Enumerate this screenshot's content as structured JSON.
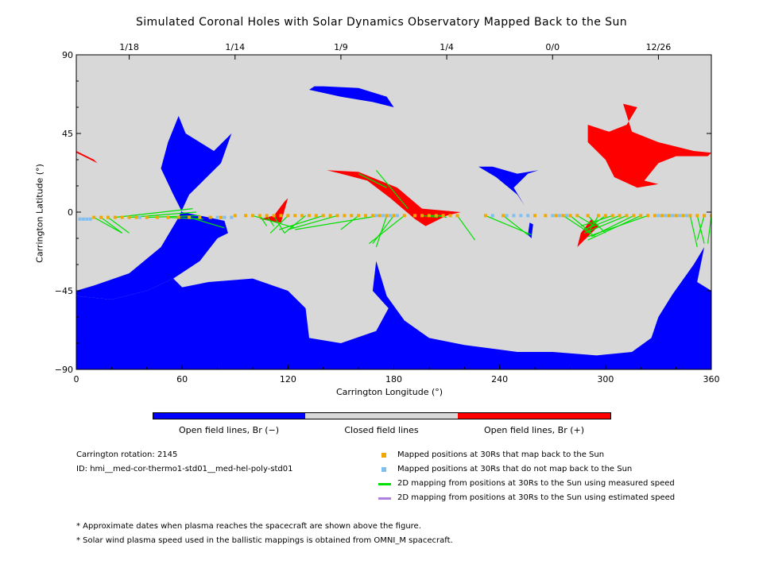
{
  "chart_data": {
    "type": "map",
    "title": "Simulated Coronal Holes with Solar Dynamics Observatory Mapped Back to the Sun",
    "xlabel": "Carrington Longitude (°)",
    "ylabel": "Carrington Latitude (°)",
    "xlim": [
      0,
      360
    ],
    "ylim": [
      -90,
      90
    ],
    "x_ticks": [
      "0",
      "60",
      "120",
      "180",
      "240",
      "300",
      "360"
    ],
    "y_ticks": [
      "90",
      "45",
      "0",
      "-45",
      "-90"
    ],
    "top_axis_dates": [
      "1/18",
      "1/14",
      "1/9",
      "1/4",
      "0/0",
      "12/26"
    ],
    "top_axis_positions_lon": [
      30,
      90,
      150,
      210,
      270,
      330
    ],
    "colors": {
      "background": "#d8d8d8",
      "open_negative": "#0000ff",
      "open_positive": "#ff0000",
      "closed": "#d8d8d8",
      "mapped_back": "#f0a800",
      "not_mapped": "#80c0f0",
      "measured_speed": "#00e000",
      "estimated_speed": "#b080e0"
    },
    "regions": {
      "negative": [
        [
          [
            0,
            -48
          ],
          [
            20,
            -50
          ],
          [
            40,
            -45
          ],
          [
            55,
            -38
          ],
          [
            70,
            -28
          ],
          [
            80,
            -15
          ],
          [
            86,
            -12
          ],
          [
            84,
            -5
          ],
          [
            75,
            -3
          ],
          [
            60,
            0
          ],
          [
            55,
            10
          ],
          [
            48,
            25
          ],
          [
            52,
            40
          ],
          [
            58,
            55
          ],
          [
            62,
            45
          ],
          [
            78,
            35
          ],
          [
            88,
            45
          ],
          [
            82,
            28
          ],
          [
            72,
            18
          ],
          [
            64,
            10
          ],
          [
            58,
            -3
          ],
          [
            48,
            -20
          ],
          [
            30,
            -35
          ],
          [
            10,
            -42
          ],
          [
            0,
            -45
          ]
        ],
        [
          [
            0,
            -90
          ],
          [
            0,
            -48
          ],
          [
            20,
            -50
          ],
          [
            40,
            -45
          ],
          [
            55,
            -38
          ],
          [
            60,
            -43
          ],
          [
            75,
            -40
          ],
          [
            100,
            -38
          ],
          [
            120,
            -45
          ],
          [
            130,
            -55
          ],
          [
            132,
            -72
          ],
          [
            150,
            -75
          ],
          [
            170,
            -68
          ],
          [
            177,
            -55
          ],
          [
            168,
            -45
          ],
          [
            170,
            -28
          ],
          [
            176,
            -48
          ],
          [
            186,
            -62
          ],
          [
            200,
            -72
          ],
          [
            220,
            -76
          ],
          [
            250,
            -80
          ],
          [
            270,
            -80
          ],
          [
            295,
            -82
          ],
          [
            315,
            -80
          ],
          [
            326,
            -72
          ],
          [
            330,
            -60
          ],
          [
            338,
            -47
          ],
          [
            350,
            -30
          ],
          [
            356,
            -20
          ],
          [
            352,
            -40
          ],
          [
            360,
            -45
          ],
          [
            360,
            -90
          ]
        ],
        [
          [
            132,
            70
          ],
          [
            150,
            66
          ],
          [
            168,
            63
          ],
          [
            180,
            60
          ],
          [
            176,
            66
          ],
          [
            160,
            71
          ],
          [
            140,
            72
          ],
          [
            135,
            72
          ]
        ],
        [
          [
            228,
            26
          ],
          [
            238,
            20
          ],
          [
            250,
            10
          ],
          [
            254,
            4
          ],
          [
            248,
            14
          ],
          [
            256,
            22
          ],
          [
            262,
            24
          ],
          [
            250,
            22
          ],
          [
            236,
            26
          ]
        ],
        [
          [
            256,
            -13
          ],
          [
            258,
            -15
          ],
          [
            259,
            -7
          ],
          [
            257,
            -6
          ]
        ]
      ],
      "positive": [
        [
          [
            290,
            50
          ],
          [
            302,
            46
          ],
          [
            312,
            50
          ],
          [
            318,
            60
          ],
          [
            310,
            62
          ],
          [
            315,
            46
          ],
          [
            330,
            40
          ],
          [
            350,
            35
          ],
          [
            360,
            34
          ],
          [
            358,
            32
          ],
          [
            340,
            32
          ],
          [
            330,
            28
          ],
          [
            322,
            18
          ],
          [
            330,
            16
          ],
          [
            318,
            14
          ],
          [
            305,
            20
          ],
          [
            300,
            30
          ],
          [
            290,
            40
          ]
        ],
        [
          [
            0,
            35
          ],
          [
            10,
            30
          ],
          [
            12,
            28
          ],
          [
            2,
            33
          ],
          [
            0,
            34
          ]
        ],
        [
          [
            142,
            24
          ],
          [
            160,
            23
          ],
          [
            182,
            14
          ],
          [
            196,
            2
          ],
          [
            218,
            0
          ],
          [
            210,
            -2
          ],
          [
            198,
            -8
          ],
          [
            192,
            -4
          ],
          [
            178,
            8
          ],
          [
            165,
            18
          ],
          [
            150,
            22
          ]
        ],
        [
          [
            104,
            -4
          ],
          [
            116,
            -6
          ],
          [
            120,
            -14
          ],
          [
            116,
            -6
          ],
          [
            120,
            8
          ],
          [
            118,
            6
          ],
          [
            112,
            -2
          ]
        ],
        [
          [
            284,
            -20
          ],
          [
            288,
            -16
          ],
          [
            296,
            -8
          ],
          [
            292,
            -4
          ],
          [
            286,
            -12
          ]
        ]
      ]
    },
    "mapped_back_points": {
      "lon": [
        10,
        14,
        18,
        22,
        26,
        30,
        34,
        40,
        46,
        52,
        58,
        64,
        70,
        76,
        82,
        90,
        96,
        100,
        104,
        108,
        112,
        116,
        120,
        124,
        128,
        132,
        136,
        140,
        144,
        148,
        152,
        156,
        160,
        164,
        168,
        172,
        176,
        180,
        186,
        192,
        196,
        200,
        204,
        208,
        212,
        216,
        232,
        242,
        260,
        266,
        272,
        276,
        280,
        284,
        290,
        296,
        300,
        304,
        308,
        312,
        316,
        320,
        324,
        328,
        332,
        336,
        340,
        344,
        348,
        352,
        356,
        360
      ],
      "lat": [
        -3,
        -3,
        -3,
        -3,
        -3,
        -3,
        -3,
        -3,
        -3,
        -3,
        -3,
        -3,
        -3,
        -3,
        -3,
        -2,
        -2,
        -2,
        -2,
        -2,
        -2,
        -2,
        -2,
        -2,
        -2,
        -2,
        -2,
        -2,
        -2,
        -2,
        -2,
        -2,
        -2,
        -2,
        -2,
        -2,
        -2,
        -2,
        -2,
        -2,
        -2,
        -2,
        -2,
        -2,
        -2,
        -2,
        -2,
        -2,
        -2,
        -2,
        -2,
        -2,
        -2,
        -2,
        -2,
        -2,
        -2,
        -2,
        -2,
        -2,
        -2,
        -2,
        -2,
        -2,
        -2,
        -2,
        -2,
        -2,
        -2,
        -2,
        -2,
        -2
      ]
    },
    "not_mapped_points": {
      "lon": [
        2,
        4,
        6,
        8,
        36,
        80,
        84,
        88,
        170,
        174,
        178,
        182,
        236,
        244,
        248,
        252,
        256,
        270,
        274,
        278,
        330,
        332,
        334,
        336,
        338,
        340,
        342,
        344,
        346
      ],
      "lat": [
        -4,
        -4,
        -4,
        -4,
        -3,
        -3,
        -3,
        -3,
        -2,
        -2,
        -2,
        -2,
        -2,
        -2,
        -2,
        -2,
        -2,
        -2,
        -2,
        -2,
        -2,
        -2,
        -2,
        -2,
        -2,
        -2,
        -2,
        -2,
        -2
      ]
    },
    "measured_speed_lines": [
      [
        [
          10,
          -3
        ],
        [
          26,
          -12
        ]
      ],
      [
        [
          14,
          -3
        ],
        [
          26,
          -12
        ]
      ],
      [
        [
          18,
          -3
        ],
        [
          30,
          -12
        ]
      ],
      [
        [
          22,
          -3
        ],
        [
          66,
          2
        ]
      ],
      [
        [
          30,
          -3
        ],
        [
          68,
          0
        ]
      ],
      [
        [
          40,
          -3
        ],
        [
          70,
          -2
        ]
      ],
      [
        [
          52,
          -3
        ],
        [
          72,
          -4
        ]
      ],
      [
        [
          64,
          -3
        ],
        [
          84,
          -9
        ]
      ],
      [
        [
          100,
          -2
        ],
        [
          124,
          -9
        ]
      ],
      [
        [
          104,
          -2
        ],
        [
          108,
          -8
        ]
      ],
      [
        [
          108,
          -2
        ],
        [
          112,
          -8
        ]
      ],
      [
        [
          112,
          -2
        ],
        [
          118,
          -12
        ]
      ],
      [
        [
          120,
          -2
        ],
        [
          110,
          -12
        ]
      ],
      [
        [
          130,
          -2
        ],
        [
          118,
          -12
        ]
      ],
      [
        [
          140,
          -2
        ],
        [
          115,
          -10
        ]
      ],
      [
        [
          148,
          -2
        ],
        [
          120,
          -10
        ]
      ],
      [
        [
          160,
          -2
        ],
        [
          150,
          -10
        ]
      ],
      [
        [
          172,
          -2
        ],
        [
          124,
          -10
        ]
      ],
      [
        [
          186,
          -2
        ],
        [
          166,
          -18
        ]
      ],
      [
        [
          180,
          -2
        ],
        [
          168,
          -18
        ]
      ],
      [
        [
          176,
          -2
        ],
        [
          170,
          -20
        ]
      ],
      [
        [
          196,
          -2
        ],
        [
          205,
          -3
        ]
      ],
      [
        [
          200,
          -2
        ],
        [
          208,
          -2
        ]
      ],
      [
        [
          204,
          -2
        ],
        [
          210,
          -3
        ]
      ],
      [
        [
          216,
          -2
        ],
        [
          226,
          -16
        ]
      ],
      [
        [
          176,
          14
        ],
        [
          160,
          22
        ]
      ],
      [
        [
          188,
          2
        ],
        [
          170,
          24
        ]
      ],
      [
        [
          232,
          -2
        ],
        [
          258,
          -13
        ]
      ],
      [
        [
          242,
          -2
        ],
        [
          256,
          -13
        ]
      ],
      [
        [
          276,
          -2
        ],
        [
          294,
          -14
        ]
      ],
      [
        [
          280,
          -2
        ],
        [
          292,
          -12
        ]
      ],
      [
        [
          284,
          -2
        ],
        [
          294,
          -8
        ]
      ],
      [
        [
          290,
          -2
        ],
        [
          300,
          -12
        ]
      ],
      [
        [
          296,
          -2
        ],
        [
          290,
          -12
        ]
      ],
      [
        [
          300,
          -2
        ],
        [
          289,
          -10
        ]
      ],
      [
        [
          304,
          -2
        ],
        [
          286,
          -8
        ]
      ],
      [
        [
          308,
          -2
        ],
        [
          288,
          -10
        ]
      ],
      [
        [
          312,
          -2
        ],
        [
          288,
          -12
        ]
      ],
      [
        [
          316,
          -2
        ],
        [
          292,
          -14
        ]
      ],
      [
        [
          320,
          -2
        ],
        [
          290,
          -16
        ]
      ],
      [
        [
          324,
          -2
        ],
        [
          290,
          -14
        ]
      ],
      [
        [
          348,
          -2
        ],
        [
          352,
          -20
        ]
      ],
      [
        [
          352,
          -2
        ],
        [
          356,
          -18
        ]
      ],
      [
        [
          356,
          -2
        ],
        [
          352,
          -16
        ]
      ],
      [
        [
          360,
          -2
        ],
        [
          358,
          -18
        ]
      ]
    ]
  },
  "colorbar": {
    "labels": [
      "Open field lines, Br (−)",
      "Closed field lines",
      "Open field lines, Br (+)"
    ],
    "colors": [
      "#0000ff",
      "#d8d8d8",
      "#ff0000"
    ]
  },
  "info": {
    "rotation": "Carrington rotation: 2145",
    "id": "ID: hmi__med-cor-thermo1-std01__med-hel-poly-std01"
  },
  "legend": [
    {
      "label": "Mapped positions at 30Rs that map back to the Sun",
      "kind": "square",
      "color": "#f0a800"
    },
    {
      "label": "Mapped positions at 30Rs that do not map back to the Sun",
      "kind": "square",
      "color": "#80c0f0"
    },
    {
      "label": "2D mapping from positions at 30Rs to the Sun using measured speed",
      "kind": "line",
      "color": "#00e000"
    },
    {
      "label": "2D mapping from positions at 30Rs to the Sun using estimated speed",
      "kind": "line",
      "color": "#b080e0"
    }
  ],
  "notes": [
    "* Approximate dates when plasma reaches the spacecraft are shown above the figure.",
    "* Solar wind plasma speed used in the ballistic mappings is obtained from OMNI_M spacecraft."
  ]
}
